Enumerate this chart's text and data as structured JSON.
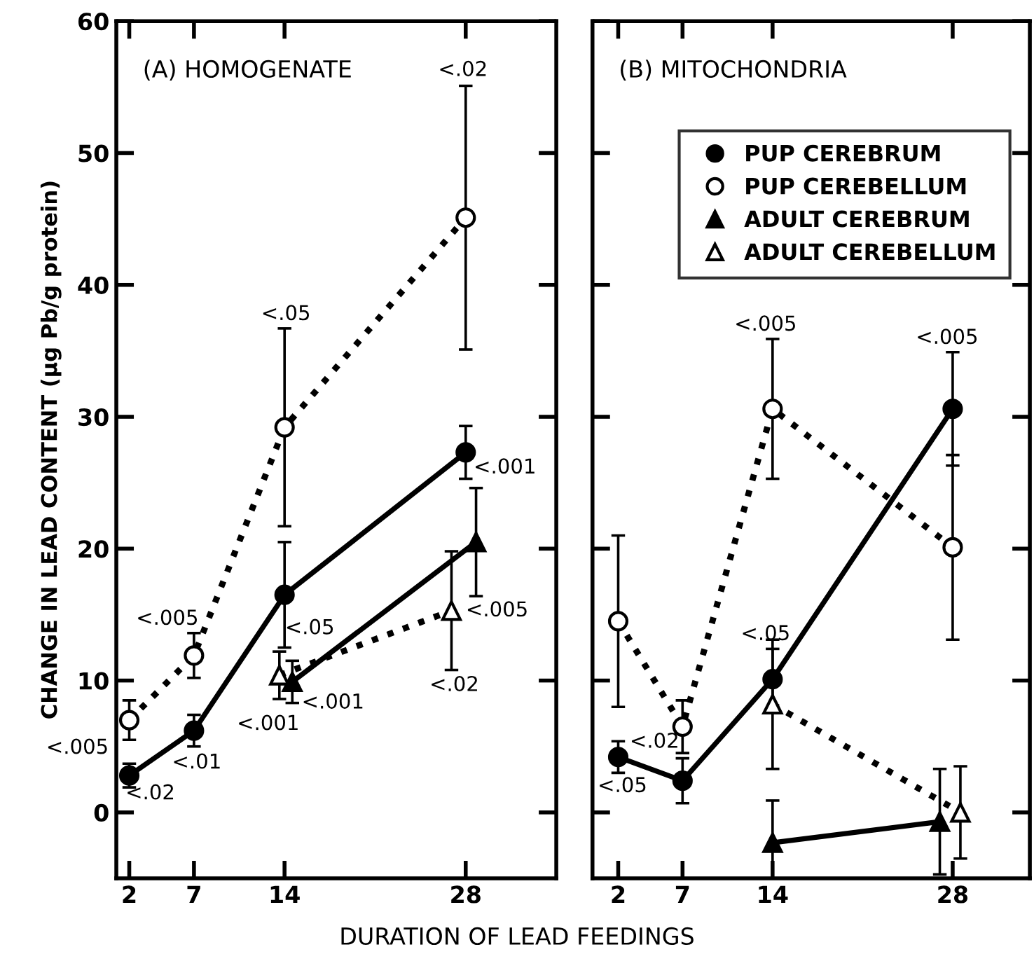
{
  "chart_data": [
    {
      "type": "line",
      "title": "(A) HOMOGENATE",
      "xlabel": "DURATION OF LEAD FEEDINGS",
      "ylabel": "CHANGE IN LEAD CONTENT (µg Pb/g protein)",
      "xlim": [
        1,
        35
      ],
      "xticks": [
        2,
        7,
        14,
        28
      ],
      "ylim": [
        -5,
        60
      ],
      "yticks": [
        0,
        10,
        20,
        30,
        40,
        50,
        60
      ],
      "grid": false,
      "legend": false,
      "series": [
        {
          "color": "#000000",
          "marker": "circle",
          "line_style": "solid",
          "x": [
            2,
            7,
            14,
            28
          ],
          "values": [
            2.8,
            6.2,
            16.5,
            27.3
          ],
          "errors": [
            0.9,
            1.2,
            4,
            2
          ]
        },
        {
          "color": "#000000",
          "marker": "circle",
          "line_style": "dotted",
          "x": [
            2,
            7,
            14,
            28
          ],
          "values": [
            7.0,
            11.9,
            29.2,
            45.1
          ],
          "errors": [
            1.5,
            1.7,
            7.5,
            10
          ]
        },
        {
          "color": "#000000",
          "marker": "triangle",
          "line_style": "solid",
          "x": [
            14.6,
            28.8
          ],
          "values": [
            9.9,
            20.5
          ],
          "errors": [
            1.6,
            4.1
          ]
        },
        {
          "color": "#000000",
          "marker": "triangle",
          "line_style": "dotted",
          "x": [
            13.6,
            26.9
          ],
          "values": [
            10.4,
            15.3
          ],
          "errors": [
            1.8,
            4.5
          ]
        }
      ],
      "annotations": [
        {
          "text": "<.005",
          "x": 2,
          "y": 7.0
        },
        {
          "text": "<.02",
          "x": 2,
          "y": 2.8
        },
        {
          "text": "<.005",
          "x": 7,
          "y": 11.9
        },
        {
          "text": "<.01",
          "x": 7,
          "y": 6.2
        },
        {
          "text": "<.05",
          "x": 14,
          "y": 36.7
        },
        {
          "text": "<.05",
          "x": 14,
          "y": 16.5
        },
        {
          "text": "<.001",
          "x": 13.6,
          "y": 10.4
        },
        {
          "text": "<.001",
          "x": 14.6,
          "y": 9.9
        },
        {
          "text": "<.02",
          "x": 28,
          "y": 55.1
        },
        {
          "text": "<.001",
          "x": 28,
          "y": 27.3
        },
        {
          "text": "<.005",
          "x": 28.8,
          "y": 20.5
        },
        {
          "text": "<.02",
          "x": 26.9,
          "y": 10.8
        }
      ]
    },
    {
      "type": "line",
      "title": "(B) MITOCHONDRIA",
      "xlim": [
        0,
        34
      ],
      "xticks": [
        2,
        7,
        14,
        28
      ],
      "ylim": [
        -5,
        60
      ],
      "yticks": [
        0,
        10,
        20,
        30,
        40,
        50,
        60
      ],
      "tick_labels": "x",
      "grid": false,
      "legend": "top right",
      "series": [
        {
          "name": "PUP CEREBRUM",
          "color": "#000000",
          "marker": "circle",
          "line_style": "solid",
          "x": [
            2,
            7,
            14,
            28
          ],
          "values": [
            4.2,
            2.4,
            10.1,
            30.6
          ],
          "errors": [
            1.2,
            1.7,
            2.3,
            4.3
          ]
        },
        {
          "name": "PUP CEREBELLUM",
          "color": "#000000",
          "marker": "circle",
          "line_style": "dotted",
          "x": [
            2,
            7,
            14,
            28
          ],
          "values": [
            14.5,
            6.5,
            30.6,
            20.1
          ],
          "errors": [
            6.5,
            2,
            5.3,
            7
          ]
        },
        {
          "name": "ADULT CEREBRUM",
          "color": "#000000",
          "marker": "triangle",
          "line_style": "solid",
          "x": [
            14,
            27.0
          ],
          "values": [
            -2.3,
            -0.7
          ],
          "errors": [
            3.2,
            4
          ]
        },
        {
          "name": "ADULT CEREBELLUM",
          "color": "#000000",
          "marker": "triangle",
          "line_style": "dotted",
          "x": [
            14,
            28.6
          ],
          "values": [
            8.2,
            0.0
          ],
          "errors": [
            4.9,
            3.5
          ]
        }
      ],
      "annotations": [
        {
          "text": "<.05",
          "x": 2,
          "y": 4.2
        },
        {
          "text": "<.02",
          "x": 7,
          "y": 6.5
        },
        {
          "text": "<.005",
          "x": 14,
          "y": 35.9
        },
        {
          "text": "<.05",
          "x": 14,
          "y": 10.1
        },
        {
          "text": "<.005",
          "x": 28,
          "y": 34.9
        }
      ]
    }
  ]
}
